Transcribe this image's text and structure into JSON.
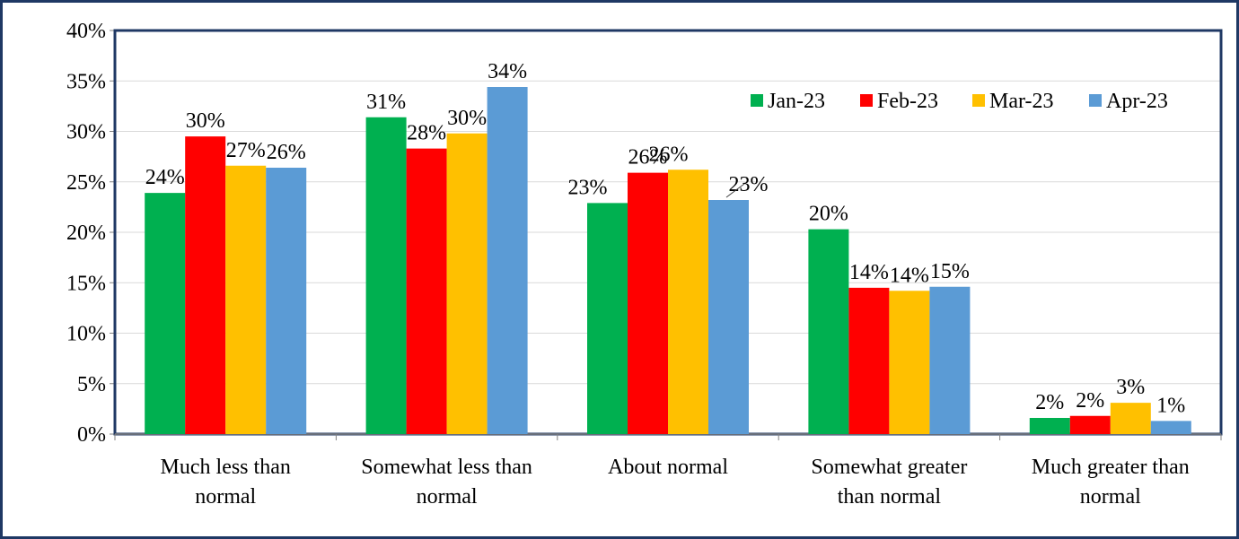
{
  "chart_data": {
    "type": "bar",
    "title": "",
    "xlabel": "",
    "ylabel": "",
    "categories": [
      [
        "Much less than",
        "normal"
      ],
      [
        "Somewhat less than",
        "normal"
      ],
      [
        "About normal"
      ],
      [
        "Somewhat greater",
        "than normal"
      ],
      [
        "Much greater than",
        "normal"
      ]
    ],
    "series": [
      {
        "name": "Jan-23",
        "color": "#00b050",
        "values": [
          23.9,
          31.4,
          22.9,
          20.3,
          1.6
        ],
        "labels": [
          "24%",
          "31%",
          "23%",
          "20%",
          "2%"
        ]
      },
      {
        "name": "Feb-23",
        "color": "#ff0000",
        "values": [
          29.5,
          28.3,
          25.9,
          14.5,
          1.8
        ],
        "labels": [
          "30%",
          "28%",
          "26%",
          "14%",
          "2%"
        ]
      },
      {
        "name": "Mar-23",
        "color": "#ffc000",
        "values": [
          26.6,
          29.8,
          26.2,
          14.2,
          3.1
        ],
        "labels": [
          "27%",
          "30%",
          "26%",
          "14%",
          "3%"
        ]
      },
      {
        "name": "Apr-23",
        "color": "#5b9bd5",
        "values": [
          26.4,
          34.4,
          23.2,
          14.6,
          1.3
        ],
        "labels": [
          "26%",
          "34%",
          "23%",
          "15%",
          "1%"
        ]
      }
    ],
    "ylim": [
      0,
      40
    ],
    "yticks": [
      "0%",
      "5%",
      "10%",
      "15%",
      "20%",
      "25%",
      "30%",
      "35%",
      "40%"
    ],
    "grid": true,
    "legend": "top-right"
  }
}
